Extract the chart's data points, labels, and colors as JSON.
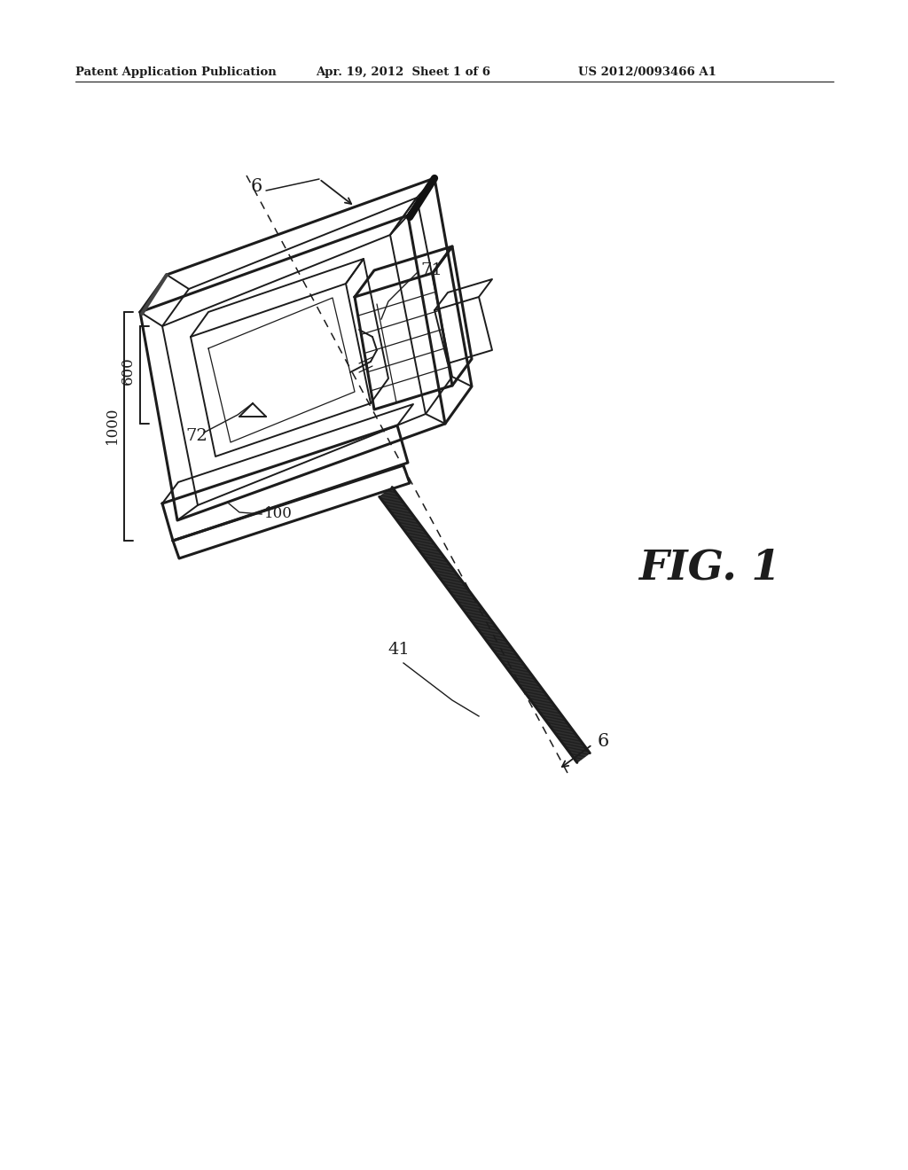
{
  "bg_color": "#ffffff",
  "lc": "#1c1c1c",
  "header_left": "Patent Application Publication",
  "header_mid": "Apr. 19, 2012  Sheet 1 of 6",
  "header_right": "US 2012/0093466 A1",
  "fig_label": "FIG. 1",
  "lw": 1.4,
  "lw2": 2.2,
  "lwt": 0.9
}
